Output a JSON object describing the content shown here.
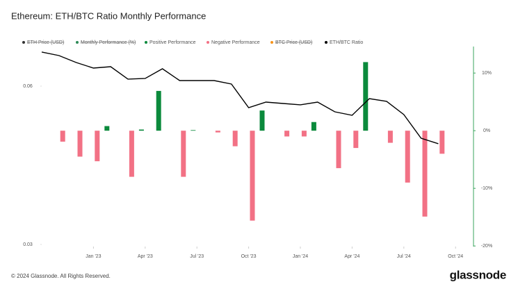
{
  "chart_data": {
    "type": "bar-line",
    "title": "Ethereum: ETH/BTC Ratio Monthly Performance",
    "x": [
      "2022-10",
      "2022-11",
      "2022-12",
      "2023-01",
      "2023-02",
      "2023-03",
      "2023-04",
      "2023-05",
      "2023-06",
      "2023-07",
      "2023-08",
      "2023-09",
      "2023-10",
      "2023-11",
      "2023-12",
      "2024-01",
      "2024-02",
      "2024-03",
      "2024-04",
      "2024-05",
      "2024-06",
      "2024-07",
      "2024-08",
      "2024-09"
    ],
    "xlim": [
      "2022-10",
      "2024-11"
    ],
    "xticks": [
      {
        "value": "2023-01",
        "label": "Jan '23"
      },
      {
        "value": "2023-04",
        "label": "Apr '23"
      },
      {
        "value": "2023-07",
        "label": "Jul '23"
      },
      {
        "value": "2023-10",
        "label": "Oct '23"
      },
      {
        "value": "2024-01",
        "label": "Jan '24"
      },
      {
        "value": "2024-04",
        "label": "Apr '24"
      },
      {
        "value": "2024-07",
        "label": "Jul '24"
      },
      {
        "value": "2024-10",
        "label": "Oct '24"
      }
    ],
    "ylim": [
      0.0296,
      0.0675
    ],
    "yticks": [
      0.06,
      0.03
    ],
    "y2lim": [
      -20.1,
      14.6
    ],
    "y2ticks": [
      {
        "value": 10,
        "label": "10%"
      },
      {
        "value": 0,
        "label": "0%"
      },
      {
        "value": -10,
        "label": "-10%"
      },
      {
        "value": -20,
        "label": "-20%"
      }
    ],
    "hidden_series": [
      {
        "name": "ETH Price (USD)",
        "color": "#333333"
      },
      {
        "name": "Monthly Performance (%)",
        "color": "#2e8b57"
      },
      {
        "name": "BTC Price (USD)",
        "color": "#f7931a"
      }
    ],
    "series": [
      {
        "name": "Positive Performance",
        "type": "bar",
        "axis": "y2",
        "color": "#0b8a3c",
        "values": [
          null,
          null,
          null,
          0.8,
          null,
          0.2,
          6.9,
          null,
          0.1,
          null,
          null,
          null,
          3.5,
          null,
          null,
          1.5,
          null,
          null,
          11.9,
          null,
          null,
          null,
          null,
          null
        ]
      },
      {
        "name": "Negative Performance",
        "type": "bar",
        "axis": "y2",
        "color": "#f27185",
        "values": [
          null,
          -1.9,
          -4.5,
          -5.3,
          null,
          -8.0,
          null,
          null,
          -8.0,
          null,
          -0.3,
          -2.7,
          -15.6,
          null,
          -1.0,
          -1.0,
          null,
          -6.5,
          -3.0,
          null,
          -2.1,
          -9.0,
          -14.9,
          -4.0
        ]
      },
      {
        "name": "ETH/BTC Ratio",
        "type": "line",
        "color": "#000000",
        "values": [
          0.06645,
          0.06579,
          0.06447,
          0.06342,
          0.06368,
          0.06132,
          0.06145,
          0.06329,
          0.06105,
          0.06105,
          0.06105,
          0.0604,
          0.05592,
          0.05697,
          0.05671,
          0.05645,
          0.05697,
          0.05513,
          0.05447,
          0.05763,
          0.05711,
          0.05461,
          0.05013,
          0.04908
        ]
      }
    ]
  },
  "footer": {
    "copyright": "© 2024 Glassnode. All Rights Reserved.",
    "logo": "glassnode"
  }
}
